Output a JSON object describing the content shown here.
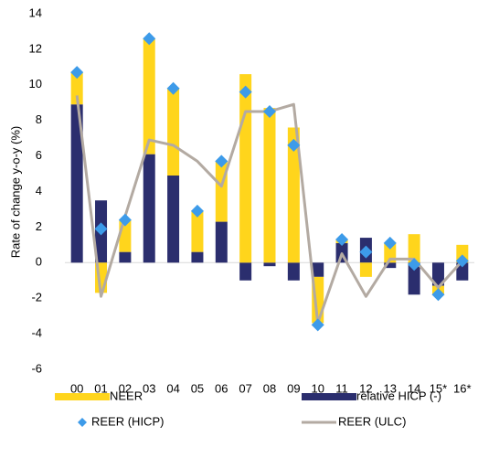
{
  "chart_data": {
    "type": "bar",
    "y_label": "Rate of change y-o-y (%)",
    "categories": [
      "00",
      "01",
      "02",
      "03",
      "04",
      "05",
      "06",
      "07",
      "08",
      "09",
      "10",
      "11",
      "12",
      "13",
      "14",
      "15*",
      "16*"
    ],
    "ylim": [
      -6,
      14
    ],
    "yticks": [
      -6,
      -4,
      -2,
      0,
      2,
      4,
      6,
      8,
      10,
      12,
      14
    ],
    "series": [
      {
        "name": "relative HICP (-)",
        "kind": "bar",
        "color": "#2b2e6e",
        "values": [
          8.9,
          3.5,
          0.6,
          6.1,
          4.9,
          0.6,
          2.3,
          -1.0,
          -0.2,
          -1.0,
          -0.8,
          1.1,
          1.4,
          -0.3,
          -1.8,
          -1.3,
          -1.0
        ]
      },
      {
        "name": "NEER",
        "kind": "bar",
        "color": "#ffd51c",
        "values": [
          1.8,
          -1.7,
          1.8,
          6.5,
          4.9,
          2.3,
          3.4,
          10.6,
          8.7,
          7.6,
          -2.6,
          0.2,
          -0.8,
          1.1,
          1.6,
          -0.5,
          1.0
        ]
      },
      {
        "name": "REER (HICP)",
        "kind": "marker",
        "color": "#3d9be9",
        "values": [
          10.7,
          1.9,
          2.4,
          12.6,
          9.8,
          2.9,
          5.7,
          9.6,
          8.5,
          6.6,
          -3.5,
          1.3,
          0.6,
          1.1,
          -0.1,
          -1.8,
          0.1
        ]
      },
      {
        "name": "REER (ULC)",
        "kind": "line",
        "color": "#b3aaa2",
        "values": [
          9.4,
          -1.9,
          2.6,
          6.9,
          6.6,
          5.7,
          4.3,
          8.5,
          8.5,
          8.9,
          -3.4,
          0.5,
          -1.9,
          0.2,
          0.2,
          -1.4,
          0.1
        ]
      }
    ]
  }
}
